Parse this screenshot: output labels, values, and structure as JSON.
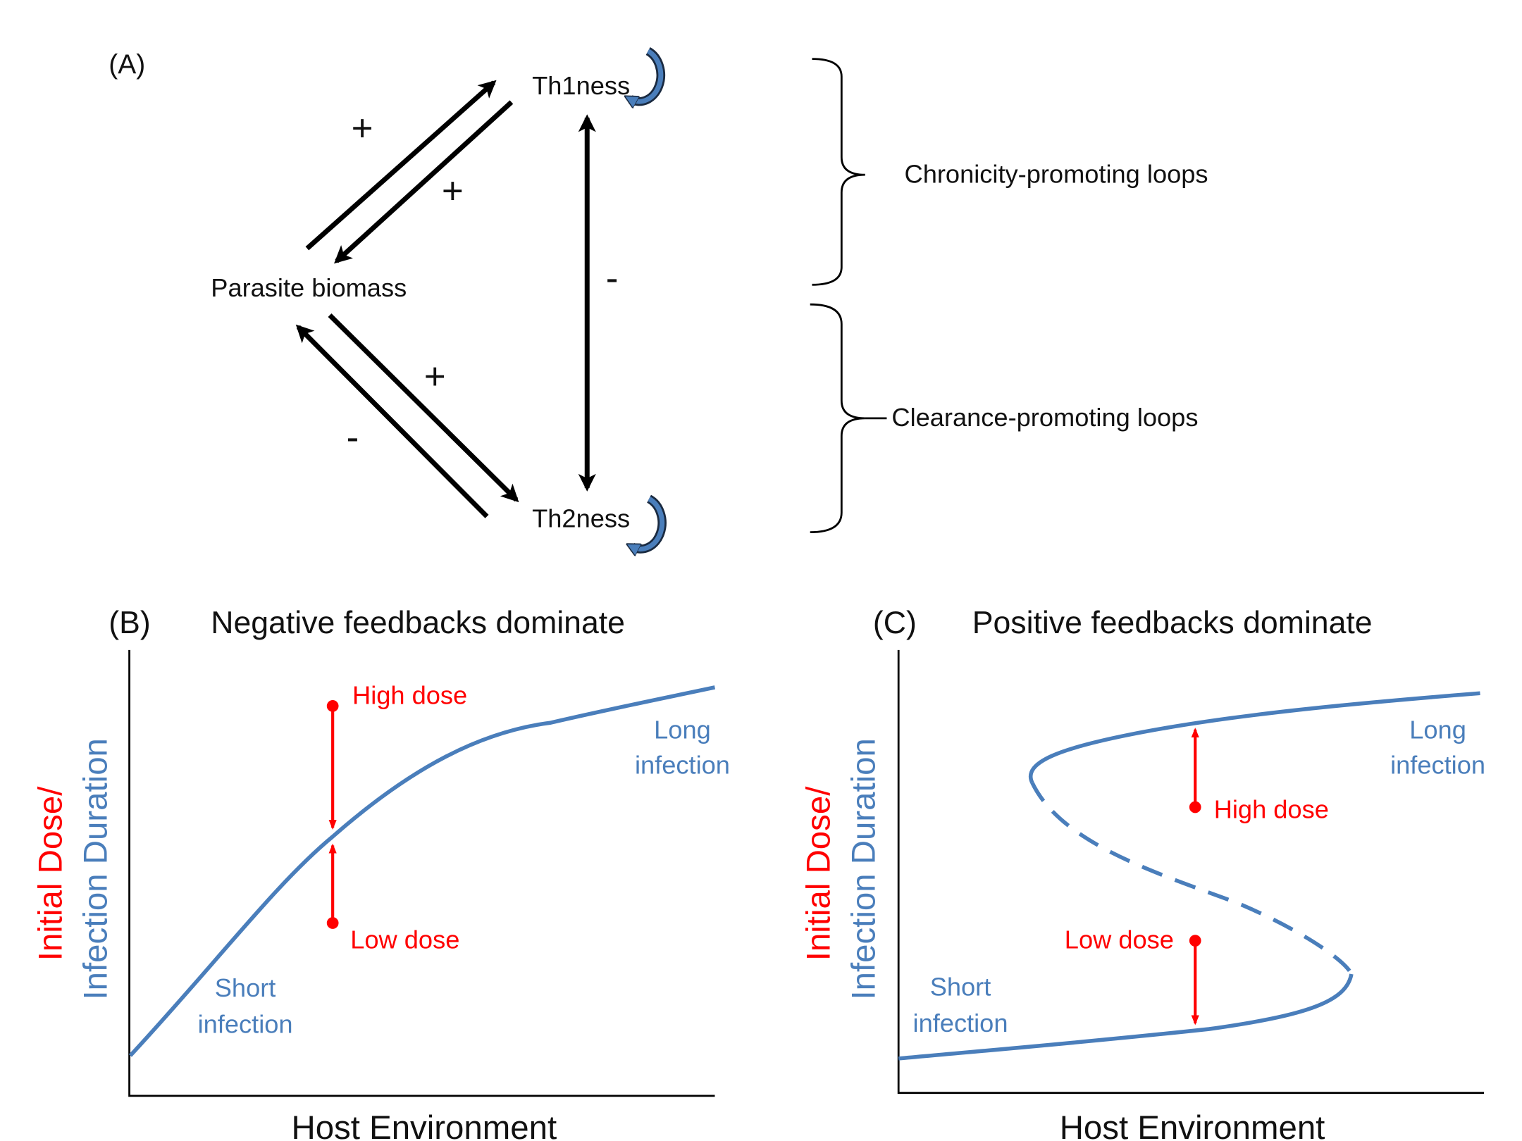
{
  "colors": {
    "text": "#111111",
    "curve": "#4A7EBB",
    "dose": "#FF0000",
    "arrow": "#000000"
  },
  "panel_a": {
    "label": "(A)",
    "nodes": {
      "th1": "Th1ness",
      "th2": "Th2ness",
      "parasite": "Parasite biomass"
    },
    "signs": {
      "parasite_to_th1": "+",
      "th1_to_parasite": "+",
      "th1_th2": "-",
      "parasite_to_th2": "+",
      "th2_to_parasite": "-"
    },
    "self_loops": [
      "circular-arrow-icon",
      "circular-arrow-icon"
    ],
    "brackets": {
      "top": "Chronicity-promoting loops",
      "bottom": "Clearance-promoting loops"
    }
  },
  "panel_b": {
    "label": "(B)",
    "title": "Negative feedbacks dominate",
    "xlabel": "Host Environment",
    "ylabel_red": "Initial Dose/",
    "ylabel_blue": "Infection Duration",
    "annotations": {
      "high_dose": "High dose",
      "low_dose": "Low dose",
      "long_1": "Long",
      "long_2": "infection",
      "short_1": "Short",
      "short_2": "infection"
    }
  },
  "panel_c": {
    "label": "(C)",
    "title": "Positive feedbacks dominate",
    "xlabel": "Host Environment",
    "ylabel_red": "Initial Dose/",
    "ylabel_blue": "Infection Duration",
    "annotations": {
      "high_dose": "High dose",
      "low_dose": "Low dose",
      "long_1": "Long",
      "long_2": "infection",
      "short_1": "Short",
      "short_2": "infection"
    }
  }
}
